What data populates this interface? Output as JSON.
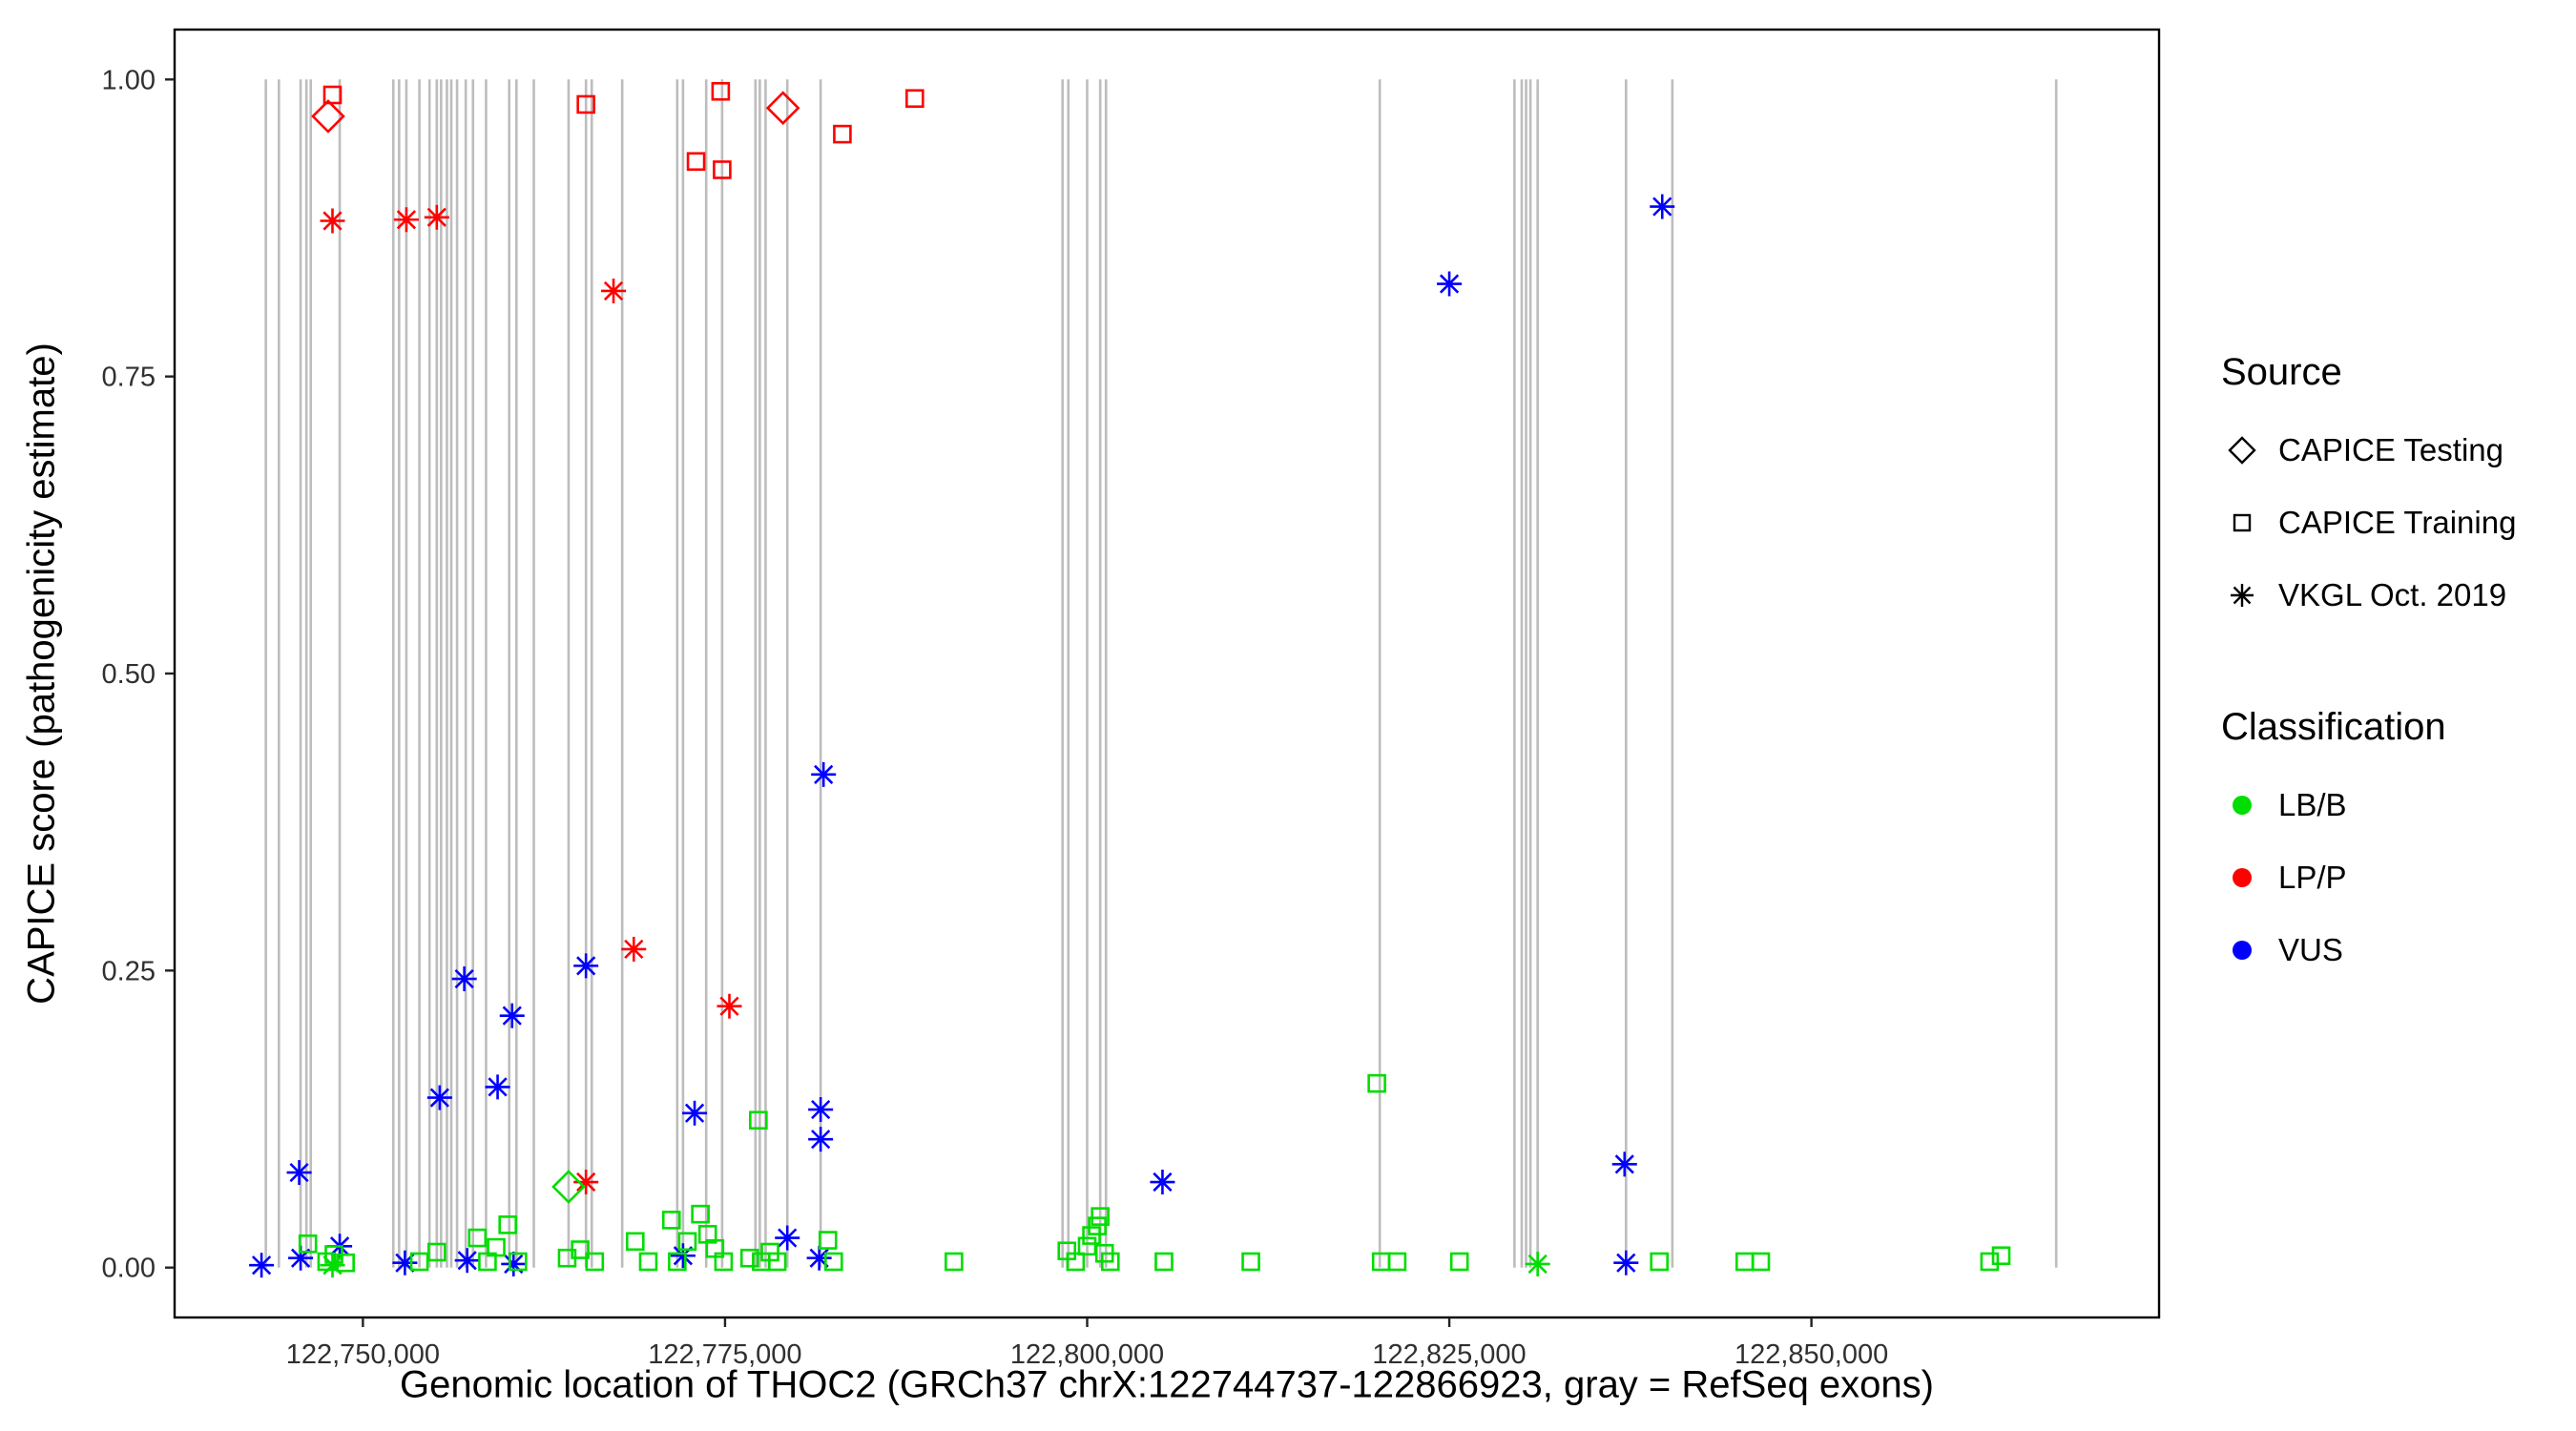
{
  "chart_data": {
    "type": "scatter",
    "title": "",
    "xlabel": "Genomic location of THOC2 (GRCh37 chrX:122744737-122866923, gray = RefSeq exons)",
    "ylabel": "CAPICE score (pathogenicity estimate)",
    "xlim": [
      122737000,
      122874000
    ],
    "ylim": [
      -0.042,
      1.042
    ],
    "grid": "off",
    "legend_position": "right",
    "x_ticks": [
      {
        "value": 122750000,
        "label": "122,750,000"
      },
      {
        "value": 122775000,
        "label": "122,775,000"
      },
      {
        "value": 122800000,
        "label": "122,800,000"
      },
      {
        "value": 122825000,
        "label": "122,825,000"
      },
      {
        "value": 122850000,
        "label": "122,850,000"
      }
    ],
    "y_ticks": [
      {
        "value": 0.0,
        "label": "0.00"
      },
      {
        "value": 0.25,
        "label": "0.25"
      },
      {
        "value": 0.5,
        "label": "0.50"
      },
      {
        "value": 0.75,
        "label": "0.75"
      },
      {
        "value": 1.0,
        "label": "1.00"
      }
    ],
    "exon_color": "#BDBDBD",
    "colors": {
      "LB/B": "#00DD00",
      "LP/P": "#FF0000",
      "VUS": "#0000FF"
    },
    "shapes": {
      "CAPICE Testing": "diamond",
      "CAPICE Training": "square",
      "VKGL Oct. 2019": "asterisk"
    },
    "exons": [
      122743300,
      122744200,
      122745700,
      122746100,
      122746400,
      122748400,
      122752100,
      122752500,
      122753000,
      122753900,
      122754600,
      122755100,
      122755400,
      122755800,
      122756100,
      122756500,
      122757100,
      122757600,
      122758500,
      122760100,
      122760600,
      122761800,
      122764200,
      122765400,
      122765800,
      122767900,
      122771700,
      122772100,
      122773700,
      122774800,
      122777100,
      122777400,
      122777800,
      122779300,
      122781600,
      122798300,
      122798700,
      122800000,
      122800900,
      122801300,
      122820200,
      122829500,
      122830000,
      122830300,
      122830600,
      122831100,
      122837200,
      122840400,
      122866900
    ],
    "points": [
      {
        "x": 122747900,
        "y": 0.987,
        "source": "CAPICE Training",
        "cls": "LP/P"
      },
      {
        "x": 122765400,
        "y": 0.979,
        "source": "CAPICE Training",
        "cls": "LP/P"
      },
      {
        "x": 122774700,
        "y": 0.99,
        "source": "CAPICE Training",
        "cls": "LP/P"
      },
      {
        "x": 122773000,
        "y": 0.931,
        "source": "CAPICE Training",
        "cls": "LP/P"
      },
      {
        "x": 122774800,
        "y": 0.924,
        "source": "CAPICE Training",
        "cls": "LP/P"
      },
      {
        "x": 122783100,
        "y": 0.954,
        "source": "CAPICE Training",
        "cls": "LP/P"
      },
      {
        "x": 122788100,
        "y": 0.984,
        "source": "CAPICE Training",
        "cls": "LP/P"
      },
      {
        "x": 122747600,
        "y": 0.969,
        "source": "CAPICE Testing",
        "cls": "LP/P"
      },
      {
        "x": 122779000,
        "y": 0.976,
        "source": "CAPICE Testing",
        "cls": "LP/P"
      },
      {
        "x": 122747900,
        "y": 0.881,
        "source": "VKGL Oct. 2019",
        "cls": "LP/P"
      },
      {
        "x": 122753000,
        "y": 0.882,
        "source": "VKGL Oct. 2019",
        "cls": "LP/P"
      },
      {
        "x": 122755100,
        "y": 0.884,
        "source": "VKGL Oct. 2019",
        "cls": "LP/P"
      },
      {
        "x": 122767300,
        "y": 0.822,
        "source": "VKGL Oct. 2019",
        "cls": "LP/P"
      },
      {
        "x": 122768700,
        "y": 0.268,
        "source": "VKGL Oct. 2019",
        "cls": "LP/P"
      },
      {
        "x": 122775300,
        "y": 0.22,
        "source": "VKGL Oct. 2019",
        "cls": "LP/P"
      },
      {
        "x": 122765400,
        "y": 0.072,
        "source": "VKGL Oct. 2019",
        "cls": "LP/P"
      },
      {
        "x": 122764200,
        "y": 0.068,
        "source": "CAPICE Testing",
        "cls": "LB/B"
      },
      {
        "x": 122825000,
        "y": 0.828,
        "source": "VKGL Oct. 2019",
        "cls": "VUS"
      },
      {
        "x": 122839700,
        "y": 0.893,
        "source": "VKGL Oct. 2019",
        "cls": "VUS"
      },
      {
        "x": 122781800,
        "y": 0.415,
        "source": "VKGL Oct. 2019",
        "cls": "VUS"
      },
      {
        "x": 122765400,
        "y": 0.254,
        "source": "VKGL Oct. 2019",
        "cls": "VUS"
      },
      {
        "x": 122757000,
        "y": 0.243,
        "source": "VKGL Oct. 2019",
        "cls": "VUS"
      },
      {
        "x": 122760300,
        "y": 0.212,
        "source": "VKGL Oct. 2019",
        "cls": "VUS"
      },
      {
        "x": 122759300,
        "y": 0.152,
        "source": "VKGL Oct. 2019",
        "cls": "VUS"
      },
      {
        "x": 122755300,
        "y": 0.143,
        "source": "VKGL Oct. 2019",
        "cls": "VUS"
      },
      {
        "x": 122772900,
        "y": 0.13,
        "source": "VKGL Oct. 2019",
        "cls": "VUS"
      },
      {
        "x": 122781600,
        "y": 0.133,
        "source": "VKGL Oct. 2019",
        "cls": "VUS"
      },
      {
        "x": 122781600,
        "y": 0.108,
        "source": "VKGL Oct. 2019",
        "cls": "VUS"
      },
      {
        "x": 122745600,
        "y": 0.08,
        "source": "VKGL Oct. 2019",
        "cls": "VUS"
      },
      {
        "x": 122805200,
        "y": 0.072,
        "source": "VKGL Oct. 2019",
        "cls": "VUS"
      },
      {
        "x": 122837100,
        "y": 0.087,
        "source": "VKGL Oct. 2019",
        "cls": "VUS"
      },
      {
        "x": 122779300,
        "y": 0.025,
        "source": "VKGL Oct. 2019",
        "cls": "VUS"
      },
      {
        "x": 122743000,
        "y": 0.002,
        "source": "VKGL Oct. 2019",
        "cls": "VUS"
      },
      {
        "x": 122745700,
        "y": 0.008,
        "source": "VKGL Oct. 2019",
        "cls": "VUS"
      },
      {
        "x": 122748400,
        "y": 0.018,
        "source": "VKGL Oct. 2019",
        "cls": "VUS"
      },
      {
        "x": 122752900,
        "y": 0.004,
        "source": "VKGL Oct. 2019",
        "cls": "VUS"
      },
      {
        "x": 122757200,
        "y": 0.006,
        "source": "VKGL Oct. 2019",
        "cls": "VUS"
      },
      {
        "x": 122760400,
        "y": 0.003,
        "source": "VKGL Oct. 2019",
        "cls": "VUS"
      },
      {
        "x": 122772100,
        "y": 0.01,
        "source": "VKGL Oct. 2019",
        "cls": "VUS"
      },
      {
        "x": 122781500,
        "y": 0.008,
        "source": "VKGL Oct. 2019",
        "cls": "VUS"
      },
      {
        "x": 122837200,
        "y": 0.004,
        "source": "VKGL Oct. 2019",
        "cls": "VUS"
      },
      {
        "x": 122831100,
        "y": 0.003,
        "source": "VKGL Oct. 2019",
        "cls": "LB/B"
      },
      {
        "x": 122747900,
        "y": 0.002,
        "source": "VKGL Oct. 2019",
        "cls": "LB/B"
      },
      {
        "x": 122746200,
        "y": 0.02,
        "source": "CAPICE Training",
        "cls": "LB/B"
      },
      {
        "x": 122747500,
        "y": 0.005,
        "source": "CAPICE Training",
        "cls": "LB/B"
      },
      {
        "x": 122748000,
        "y": 0.011,
        "source": "CAPICE Training",
        "cls": "LB/B"
      },
      {
        "x": 122748800,
        "y": 0.004,
        "source": "CAPICE Training",
        "cls": "LB/B"
      },
      {
        "x": 122753900,
        "y": 0.005,
        "source": "CAPICE Training",
        "cls": "LB/B"
      },
      {
        "x": 122755100,
        "y": 0.013,
        "source": "CAPICE Training",
        "cls": "LB/B"
      },
      {
        "x": 122757900,
        "y": 0.025,
        "source": "CAPICE Training",
        "cls": "LB/B"
      },
      {
        "x": 122758600,
        "y": 0.005,
        "source": "CAPICE Training",
        "cls": "LB/B"
      },
      {
        "x": 122759200,
        "y": 0.017,
        "source": "CAPICE Training",
        "cls": "LB/B"
      },
      {
        "x": 122760000,
        "y": 0.036,
        "source": "CAPICE Training",
        "cls": "LB/B"
      },
      {
        "x": 122760700,
        "y": 0.005,
        "source": "CAPICE Training",
        "cls": "LB/B"
      },
      {
        "x": 122764100,
        "y": 0.008,
        "source": "CAPICE Training",
        "cls": "LB/B"
      },
      {
        "x": 122765000,
        "y": 0.015,
        "source": "CAPICE Training",
        "cls": "LB/B"
      },
      {
        "x": 122766000,
        "y": 0.005,
        "source": "CAPICE Training",
        "cls": "LB/B"
      },
      {
        "x": 122768800,
        "y": 0.022,
        "source": "CAPICE Training",
        "cls": "LB/B"
      },
      {
        "x": 122769700,
        "y": 0.005,
        "source": "CAPICE Training",
        "cls": "LB/B"
      },
      {
        "x": 122771300,
        "y": 0.04,
        "source": "CAPICE Training",
        "cls": "LB/B"
      },
      {
        "x": 122771700,
        "y": 0.005,
        "source": "CAPICE Training",
        "cls": "LB/B"
      },
      {
        "x": 122772400,
        "y": 0.022,
        "source": "CAPICE Training",
        "cls": "LB/B"
      },
      {
        "x": 122773300,
        "y": 0.045,
        "source": "CAPICE Training",
        "cls": "LB/B"
      },
      {
        "x": 122773800,
        "y": 0.028,
        "source": "CAPICE Training",
        "cls": "LB/B"
      },
      {
        "x": 122774300,
        "y": 0.016,
        "source": "CAPICE Training",
        "cls": "LB/B"
      },
      {
        "x": 122774900,
        "y": 0.005,
        "source": "CAPICE Training",
        "cls": "LB/B"
      },
      {
        "x": 122776700,
        "y": 0.008,
        "source": "CAPICE Training",
        "cls": "LB/B"
      },
      {
        "x": 122777300,
        "y": 0.124,
        "source": "CAPICE Training",
        "cls": "LB/B"
      },
      {
        "x": 122777500,
        "y": 0.005,
        "source": "CAPICE Training",
        "cls": "LB/B"
      },
      {
        "x": 122778100,
        "y": 0.013,
        "source": "CAPICE Training",
        "cls": "LB/B"
      },
      {
        "x": 122778600,
        "y": 0.005,
        "source": "CAPICE Training",
        "cls": "LB/B"
      },
      {
        "x": 122782100,
        "y": 0.023,
        "source": "CAPICE Training",
        "cls": "LB/B"
      },
      {
        "x": 122782500,
        "y": 0.005,
        "source": "CAPICE Training",
        "cls": "LB/B"
      },
      {
        "x": 122790800,
        "y": 0.005,
        "source": "CAPICE Training",
        "cls": "LB/B"
      },
      {
        "x": 122798600,
        "y": 0.014,
        "source": "CAPICE Training",
        "cls": "LB/B"
      },
      {
        "x": 122799200,
        "y": 0.005,
        "source": "CAPICE Training",
        "cls": "LB/B"
      },
      {
        "x": 122800000,
        "y": 0.018,
        "source": "CAPICE Training",
        "cls": "LB/B"
      },
      {
        "x": 122800300,
        "y": 0.027,
        "source": "CAPICE Training",
        "cls": "LB/B"
      },
      {
        "x": 122800700,
        "y": 0.035,
        "source": "CAPICE Training",
        "cls": "LB/B"
      },
      {
        "x": 122800900,
        "y": 0.043,
        "source": "CAPICE Training",
        "cls": "LB/B"
      },
      {
        "x": 122801200,
        "y": 0.012,
        "source": "CAPICE Training",
        "cls": "LB/B"
      },
      {
        "x": 122801600,
        "y": 0.005,
        "source": "CAPICE Training",
        "cls": "LB/B"
      },
      {
        "x": 122805300,
        "y": 0.005,
        "source": "CAPICE Training",
        "cls": "LB/B"
      },
      {
        "x": 122811300,
        "y": 0.005,
        "source": "CAPICE Training",
        "cls": "LB/B"
      },
      {
        "x": 122820000,
        "y": 0.155,
        "source": "CAPICE Training",
        "cls": "LB/B"
      },
      {
        "x": 122820300,
        "y": 0.005,
        "source": "CAPICE Training",
        "cls": "LB/B"
      },
      {
        "x": 122821400,
        "y": 0.005,
        "source": "CAPICE Training",
        "cls": "LB/B"
      },
      {
        "x": 122825700,
        "y": 0.005,
        "source": "CAPICE Training",
        "cls": "LB/B"
      },
      {
        "x": 122839500,
        "y": 0.005,
        "source": "CAPICE Training",
        "cls": "LB/B"
      },
      {
        "x": 122845400,
        "y": 0.005,
        "source": "CAPICE Training",
        "cls": "LB/B"
      },
      {
        "x": 122846500,
        "y": 0.005,
        "source": "CAPICE Training",
        "cls": "LB/B"
      },
      {
        "x": 122862300,
        "y": 0.005,
        "source": "CAPICE Training",
        "cls": "LB/B"
      },
      {
        "x": 122863100,
        "y": 0.01,
        "source": "CAPICE Training",
        "cls": "LB/B"
      }
    ]
  },
  "legend": {
    "source_title": "Source",
    "source_items": [
      {
        "label": "CAPICE Testing",
        "shape": "diamond"
      },
      {
        "label": "CAPICE Training",
        "shape": "square"
      },
      {
        "label": "VKGL Oct. 2019",
        "shape": "asterisk"
      }
    ],
    "class_title": "Classification",
    "class_items": [
      {
        "label": "LB/B",
        "color": "#00DD00"
      },
      {
        "label": "LP/P",
        "color": "#FF0000"
      },
      {
        "label": "VUS",
        "color": "#0000FF"
      }
    ]
  }
}
